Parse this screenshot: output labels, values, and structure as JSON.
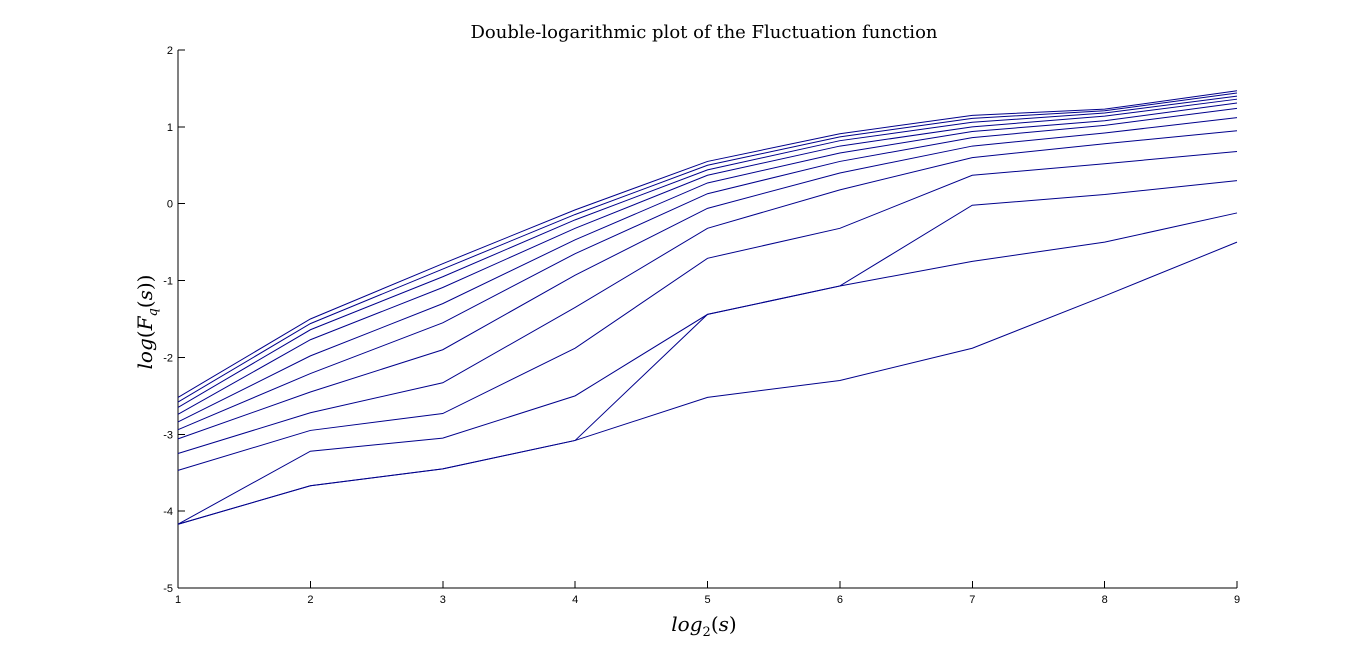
{
  "chart_data": {
    "type": "line",
    "title": "Double-logarithmic plot of the Fluctuation function",
    "xlabel": "log2(s)",
    "ylabel": "log(Fq(s))",
    "xlim": [
      1,
      9
    ],
    "ylim": [
      -5,
      2
    ],
    "xticks": [
      1,
      2,
      3,
      4,
      5,
      6,
      7,
      8,
      9
    ],
    "yticks": [
      -5,
      -4,
      -3,
      -2,
      -1,
      0,
      1,
      2
    ],
    "grid": false,
    "legend": "none",
    "line_color": "#00008b",
    "x": [
      1,
      2,
      3,
      4,
      5,
      6,
      7,
      8,
      9
    ],
    "series": [
      {
        "values": [
          -2.52,
          -1.5,
          -0.78,
          -0.08,
          0.55,
          0.91,
          1.15,
          1.23,
          1.47
        ]
      },
      {
        "values": [
          -2.58,
          -1.56,
          -0.85,
          -0.14,
          0.5,
          0.87,
          1.11,
          1.21,
          1.44
        ]
      },
      {
        "values": [
          -2.65,
          -1.64,
          -0.95,
          -0.21,
          0.44,
          0.82,
          1.06,
          1.18,
          1.4
        ]
      },
      {
        "values": [
          -2.74,
          -1.77,
          -1.09,
          -0.32,
          0.37,
          0.75,
          1.0,
          1.14,
          1.36
        ]
      },
      {
        "values": [
          -2.84,
          -1.98,
          -1.3,
          -0.47,
          0.27,
          0.66,
          0.94,
          1.08,
          1.31
        ]
      },
      {
        "values": [
          -2.94,
          -2.21,
          -1.55,
          -0.65,
          0.13,
          0.55,
          0.86,
          1.02,
          1.24
        ]
      },
      {
        "values": [
          -3.06,
          -2.45,
          -1.9,
          -0.93,
          -0.06,
          0.4,
          0.75,
          0.92,
          1.12
        ]
      },
      {
        "values": [
          -3.25,
          -2.72,
          -2.33,
          -1.35,
          -0.32,
          0.18,
          0.6,
          0.78,
          0.95
        ]
      },
      {
        "values": [
          -3.47,
          -2.95,
          -2.73,
          -1.88,
          -0.71,
          -0.32,
          0.37,
          0.52,
          0.68
        ]
      },
      {
        "values": [
          -4.17,
          -3.22,
          -3.05,
          -2.5,
          -1.44,
          -1.07,
          -0.02,
          0.12,
          0.3
        ]
      },
      {
        "values": [
          -4.17,
          -3.67,
          -3.45,
          -3.08,
          -2.52,
          -2.3,
          -1.88,
          -1.2,
          -0.5
        ]
      }
    ],
    "extra_series": [
      {
        "values": [
          -4.17,
          -3.67,
          -3.45,
          -3.08,
          -1.44,
          -1.07,
          -0.75,
          -0.5,
          -0.12
        ]
      }
    ]
  }
}
